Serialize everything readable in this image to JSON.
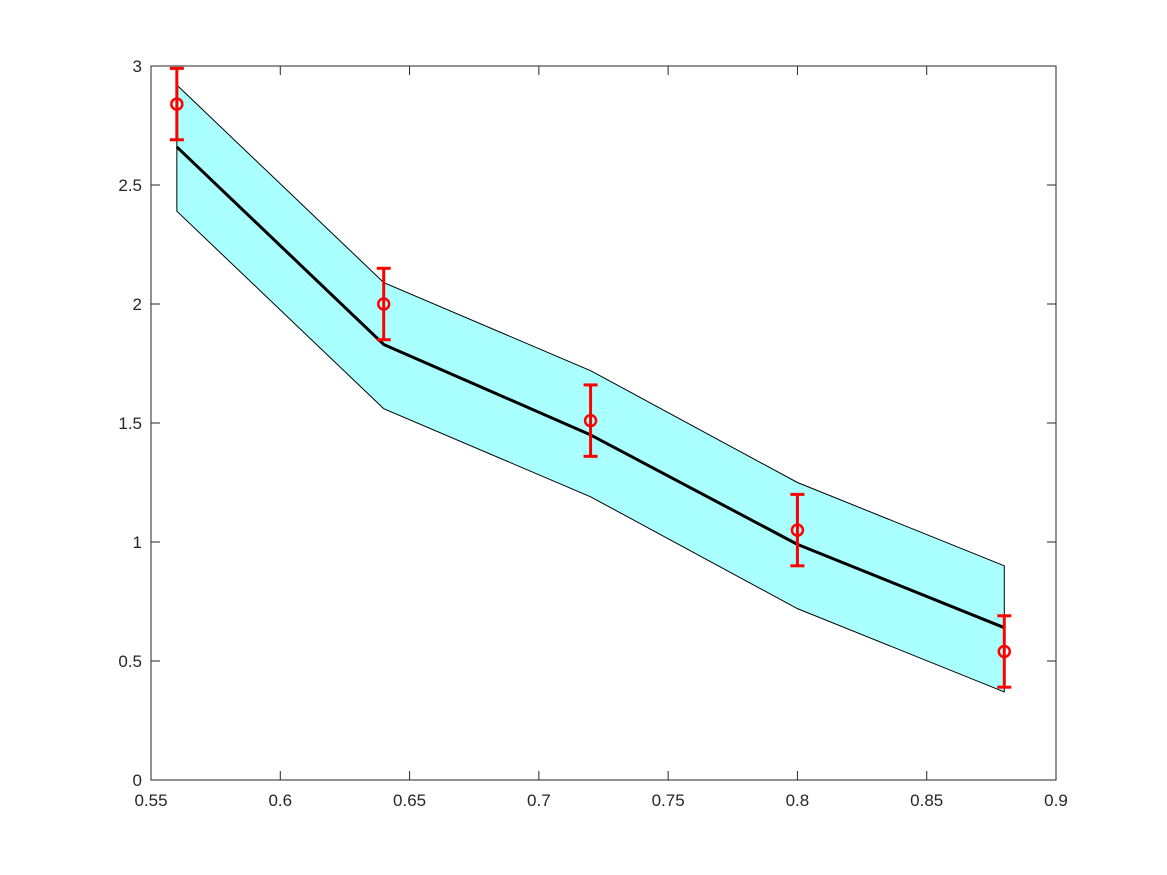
{
  "chart_data": {
    "type": "line",
    "title": "",
    "xlabel": "",
    "ylabel": "",
    "xlim": [
      0.55,
      0.9
    ],
    "ylim": [
      0,
      3
    ],
    "xticks": [
      0.55,
      0.6,
      0.65,
      0.7,
      0.75,
      0.8,
      0.85,
      0.9
    ],
    "xtick_labels": [
      "0.55",
      "0.6",
      "0.65",
      "0.7",
      "0.75",
      "0.8",
      "0.85",
      "0.9"
    ],
    "yticks": [
      0,
      0.5,
      1,
      1.5,
      2,
      2.5,
      3
    ],
    "ytick_labels": [
      "0",
      "0.5",
      "1",
      "1.5",
      "2",
      "2.5",
      "3"
    ],
    "grid": false,
    "box": true,
    "series": [
      {
        "kind": "band",
        "x": [
          0.56,
          0.64,
          0.72,
          0.8,
          0.88
        ],
        "lower": [
          2.39,
          1.56,
          1.19,
          0.72,
          0.37
        ],
        "upper": [
          2.92,
          2.09,
          1.72,
          1.25,
          0.9
        ],
        "fill_color": "#aaffff",
        "edge_color": "#000000"
      },
      {
        "kind": "line",
        "x": [
          0.56,
          0.64,
          0.72,
          0.8,
          0.88
        ],
        "y": [
          2.66,
          1.83,
          1.45,
          0.99,
          0.64
        ],
        "color": "#000000"
      },
      {
        "kind": "errorbar",
        "x": [
          0.56,
          0.64,
          0.72,
          0.8,
          0.88
        ],
        "y": [
          2.84,
          2.0,
          1.51,
          1.05,
          0.54
        ],
        "err": [
          0.15,
          0.15,
          0.15,
          0.15,
          0.15
        ],
        "marker": "circle",
        "color": "#ff0000"
      }
    ]
  }
}
